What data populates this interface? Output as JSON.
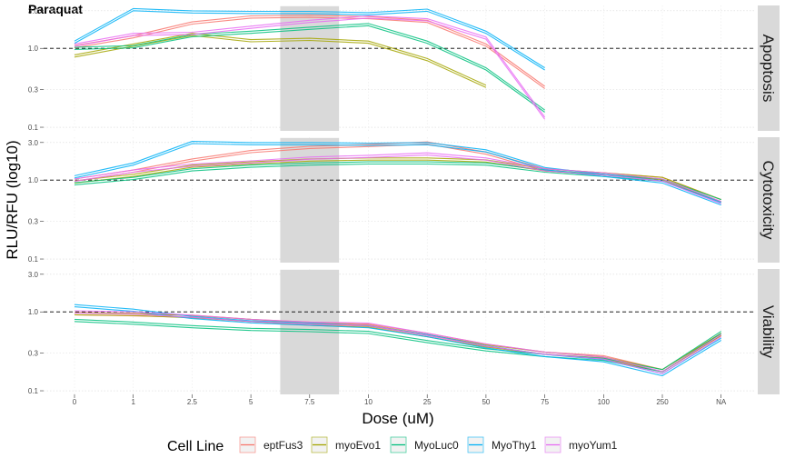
{
  "chart_data": {
    "type": "line",
    "title": "Paraquat",
    "xlabel": "Dose (uM)",
    "ylabel": "RLU/RFU (log10)",
    "x_categories": [
      "0",
      "1",
      "2.5",
      "5",
      "7.5",
      "10",
      "25",
      "50",
      "75",
      "100",
      "250",
      "NA"
    ],
    "y_scale": "log10",
    "y_ticks": [
      0.1,
      0.3,
      1.0,
      3.0
    ],
    "y_tick_labels": [
      "0.1",
      "0.3",
      "1.0",
      "3.0"
    ],
    "ylim": [
      0.09,
      3.5
    ],
    "reference_line": 1.0,
    "highlight_band": [
      "5",
      "10"
    ],
    "panels": [
      "Apoptosis",
      "Cytotoxicity",
      "Viability"
    ],
    "legend_title": "Cell Line",
    "legend_position": "bottom",
    "grid": true,
    "series": [
      {
        "name": "eptFus3",
        "color": "#F8766D",
        "replicates": 2,
        "data": {
          "Apoptosis": [
            1.05,
            1.4,
            2.1,
            2.5,
            2.55,
            2.45,
            2.2,
            1.1,
            0.32,
            null,
            null,
            null
          ],
          "Cytotoxicity": [
            1.0,
            1.3,
            1.8,
            2.3,
            2.6,
            2.75,
            2.95,
            2.2,
            1.35,
            1.2,
            1.05,
            0.55
          ],
          "Viability": [
            0.95,
            0.92,
            0.88,
            0.78,
            0.72,
            0.68,
            0.52,
            0.38,
            0.3,
            0.27,
            0.18,
            0.52
          ]
        }
      },
      {
        "name": "myoEvo1",
        "color": "#A3A500",
        "replicates": 2,
        "data": {
          "Apoptosis": [
            0.8,
            1.1,
            1.5,
            1.25,
            1.3,
            1.2,
            0.72,
            0.33,
            null,
            null,
            null,
            null
          ],
          "Cytotoxicity": [
            0.95,
            1.15,
            1.5,
            1.65,
            1.8,
            1.85,
            1.85,
            1.75,
            1.35,
            1.2,
            1.05,
            0.55
          ],
          "Viability": [
            0.95,
            0.93,
            0.87,
            0.78,
            0.7,
            0.66,
            0.5,
            0.37,
            0.3,
            0.26,
            0.18,
            0.52
          ]
        }
      },
      {
        "name": "MyoLuc0",
        "color": "#00BF7D",
        "replicates": 2,
        "data": {
          "Apoptosis": [
            1.0,
            1.05,
            1.45,
            1.6,
            1.8,
            2.0,
            1.2,
            0.55,
            0.16,
            null,
            null,
            null
          ],
          "Cytotoxicity": [
            0.9,
            1.05,
            1.35,
            1.5,
            1.6,
            1.65,
            1.65,
            1.6,
            1.3,
            1.15,
            1.0,
            0.55
          ],
          "Viability": [
            0.78,
            0.72,
            0.65,
            0.6,
            0.58,
            0.55,
            0.42,
            0.33,
            0.28,
            0.25,
            0.18,
            0.55
          ]
        }
      },
      {
        "name": "MyoThy1",
        "color": "#00B0F6",
        "replicates": 2,
        "data": {
          "Apoptosis": [
            1.2,
            3.1,
            2.9,
            2.85,
            2.85,
            2.75,
            3.05,
            1.6,
            0.55,
            null,
            null,
            null
          ],
          "Cytotoxicity": [
            1.1,
            1.6,
            3.0,
            2.9,
            2.9,
            2.85,
            2.9,
            2.35,
            1.4,
            1.15,
            0.95,
            0.5
          ],
          "Viability": [
            1.2,
            1.05,
            0.85,
            0.75,
            0.7,
            0.65,
            0.5,
            0.36,
            0.28,
            0.24,
            0.16,
            0.45
          ]
        }
      },
      {
        "name": "myoYum1",
        "color": "#E76BF3",
        "replicates": 2,
        "data": {
          "Apoptosis": [
            1.1,
            1.5,
            1.55,
            1.85,
            2.2,
            2.5,
            2.3,
            1.35,
            0.13,
            null,
            null,
            null
          ],
          "Cytotoxicity": [
            1.0,
            1.3,
            1.55,
            1.7,
            1.9,
            2.0,
            2.15,
            1.85,
            1.35,
            1.2,
            1.0,
            0.52
          ],
          "Viability": [
            1.0,
            0.97,
            0.88,
            0.78,
            0.72,
            0.7,
            0.52,
            0.38,
            0.3,
            0.26,
            0.17,
            0.5
          ]
        }
      }
    ]
  }
}
